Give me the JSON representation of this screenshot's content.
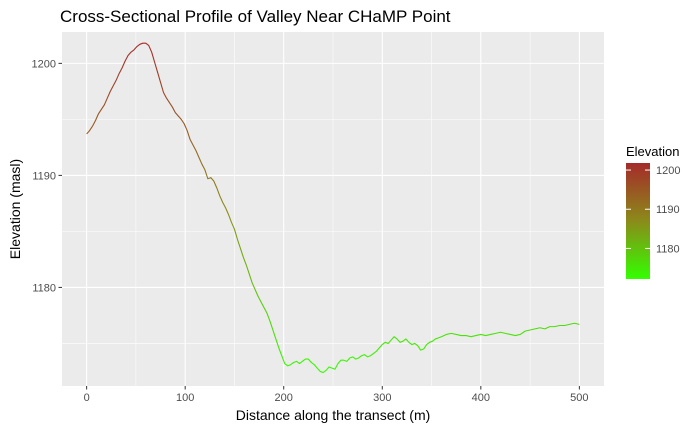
{
  "chart_data": {
    "type": "line",
    "title": "Cross-Sectional Profile of Valley Near CHaMP Point",
    "xlabel": "Distance along the transect (m)",
    "ylabel": "Elevation (masl)",
    "xlim": [
      -25,
      525
    ],
    "ylim": [
      1171.2,
      1202.8
    ],
    "x_ticks": [
      0,
      100,
      200,
      300,
      400,
      500
    ],
    "y_ticks": [
      1180,
      1190,
      1200
    ],
    "grid": true,
    "legend": {
      "title": "Elevation",
      "placement": "right",
      "ticks": [
        1180,
        1190,
        1200
      ],
      "range": [
        1172.2,
        1201.8
      ],
      "colors": {
        "low": "#33ff00",
        "mid": "#8b8b1a",
        "high": "#a52a2a"
      }
    },
    "series": [
      {
        "x": [
          0,
          3,
          6,
          9,
          12,
          15,
          18,
          21,
          24,
          27,
          30,
          33,
          36,
          39,
          42,
          45,
          48,
          51,
          54,
          57,
          60,
          63,
          66,
          69,
          72,
          75,
          78,
          81,
          84,
          87,
          90,
          93,
          96,
          99,
          102,
          105,
          108,
          111,
          114,
          117,
          120,
          123,
          126,
          129,
          132,
          135,
          138,
          141,
          144,
          147,
          150,
          153,
          156,
          159,
          162,
          165,
          168,
          171,
          174,
          177,
          180,
          183,
          186,
          189,
          192,
          195,
          198,
          201,
          204,
          207,
          210,
          213,
          216,
          219,
          222,
          225,
          228,
          231,
          234,
          237,
          240,
          243,
          246,
          249,
          252,
          255,
          258,
          261,
          264,
          267,
          270,
          273,
          276,
          279,
          282,
          285,
          288,
          291,
          294,
          297,
          300,
          303,
          306,
          309,
          312,
          315,
          318,
          321,
          324,
          327,
          330,
          333,
          336,
          339,
          342,
          345,
          348,
          351,
          354,
          357,
          360,
          365,
          370,
          375,
          380,
          385,
          390,
          395,
          400,
          405,
          410,
          415,
          420,
          425,
          430,
          435,
          440,
          445,
          450,
          455,
          460,
          465,
          470,
          475,
          480,
          485,
          490,
          495,
          500
        ],
        "y": [
          1193.7,
          1194.0,
          1194.4,
          1194.9,
          1195.5,
          1195.9,
          1196.3,
          1196.9,
          1197.5,
          1198.0,
          1198.5,
          1199.1,
          1199.6,
          1200.2,
          1200.7,
          1201.0,
          1201.2,
          1201.5,
          1201.7,
          1201.8,
          1201.8,
          1201.6,
          1201.0,
          1200.1,
          1199.2,
          1198.3,
          1197.4,
          1196.9,
          1196.5,
          1196.1,
          1195.6,
          1195.3,
          1195.0,
          1194.6,
          1194.0,
          1193.2,
          1192.7,
          1192.2,
          1191.6,
          1191.0,
          1190.5,
          1189.7,
          1189.8,
          1189.5,
          1188.9,
          1188.2,
          1187.6,
          1187.1,
          1186.5,
          1185.8,
          1185.2,
          1184.3,
          1183.5,
          1182.7,
          1182.0,
          1181.2,
          1180.4,
          1179.8,
          1179.2,
          1178.7,
          1178.2,
          1177.7,
          1177.0,
          1176.2,
          1175.4,
          1174.6,
          1173.9,
          1173.2,
          1173.0,
          1173.1,
          1173.3,
          1173.4,
          1173.2,
          1173.4,
          1173.6,
          1173.6,
          1173.3,
          1173.1,
          1172.8,
          1172.5,
          1172.4,
          1172.6,
          1172.9,
          1172.8,
          1172.7,
          1173.2,
          1173.5,
          1173.5,
          1173.4,
          1173.7,
          1173.8,
          1173.6,
          1173.7,
          1173.9,
          1174.0,
          1173.8,
          1173.9,
          1174.1,
          1174.3,
          1174.6,
          1174.9,
          1175.1,
          1175.0,
          1175.3,
          1175.6,
          1175.4,
          1175.1,
          1175.2,
          1175.4,
          1175.1,
          1174.9,
          1175.0,
          1174.8,
          1174.4,
          1174.5,
          1174.9,
          1175.1,
          1175.2,
          1175.4,
          1175.5,
          1175.6,
          1175.8,
          1175.9,
          1175.8,
          1175.7,
          1175.7,
          1175.6,
          1175.7,
          1175.8,
          1175.7,
          1175.8,
          1175.9,
          1176.0,
          1175.9,
          1175.8,
          1175.7,
          1175.8,
          1176.1,
          1176.2,
          1176.3,
          1176.4,
          1176.3,
          1176.5,
          1176.5,
          1176.6,
          1176.6,
          1176.7,
          1176.8,
          1176.7
        ]
      }
    ]
  }
}
